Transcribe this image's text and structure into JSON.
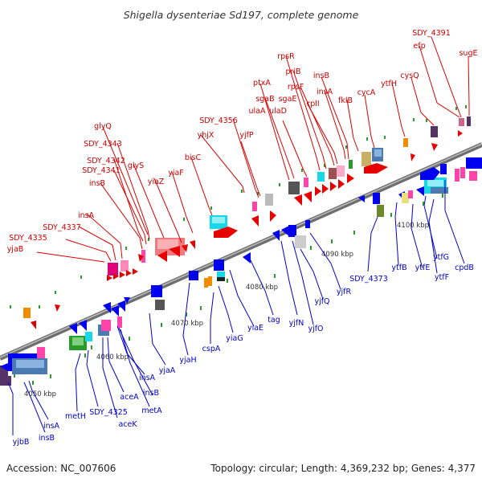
{
  "header": {
    "title": "Shigella dysenteriae Sd197, complete genome"
  },
  "footer": {
    "accession": "Accession: NC_007606",
    "summary": "Topology: circular; Length: 4,369,232 bp; Genes: 4,377"
  },
  "axis": {
    "scale_labels": [
      "4050 kbp",
      "4060 kbp",
      "4070 kbp",
      "4080 kbp",
      "4090 kbp",
      "4100 kbp"
    ]
  },
  "forward_genes": [
    "SDY_4391",
    "efp",
    "sugE",
    "rpsR",
    "priB",
    "rpsF",
    "ptxA",
    "sgaB",
    "sgaE",
    "rplI",
    "insB",
    "insA",
    "cycA",
    "ytfH",
    "cysQ",
    "ulaA",
    "ulaD",
    "fklB",
    "SDY_4356",
    "yhjX",
    "yjfP",
    "glyQ",
    "SDY_4343",
    "SDY_4342",
    "SDY_4341",
    "glyS",
    "insB",
    "yiaZ",
    "bisC",
    "yiaF",
    "insA",
    "SDY_4337",
    "SDY_4335",
    "yjaB"
  ],
  "reverse_genes": [
    "yjbB",
    "insB",
    "insA",
    "metH",
    "SDY_4325",
    "aceK",
    "aceA",
    "metA",
    "insB",
    "insA",
    "yjaA",
    "yjaH",
    "cspA",
    "yiaG",
    "yiaE",
    "tag",
    "yjfN",
    "yjfO",
    "yjfQ",
    "yjfR",
    "SDY_4373",
    "ytfB",
    "ytfE",
    "ytfF",
    "ytfG",
    "cpdB"
  ],
  "colors": {
    "forward_label": "#cc0000",
    "reverse_label": "#0000cc",
    "backbone": "#8c8c8c",
    "tick": "#2a9a2a"
  }
}
